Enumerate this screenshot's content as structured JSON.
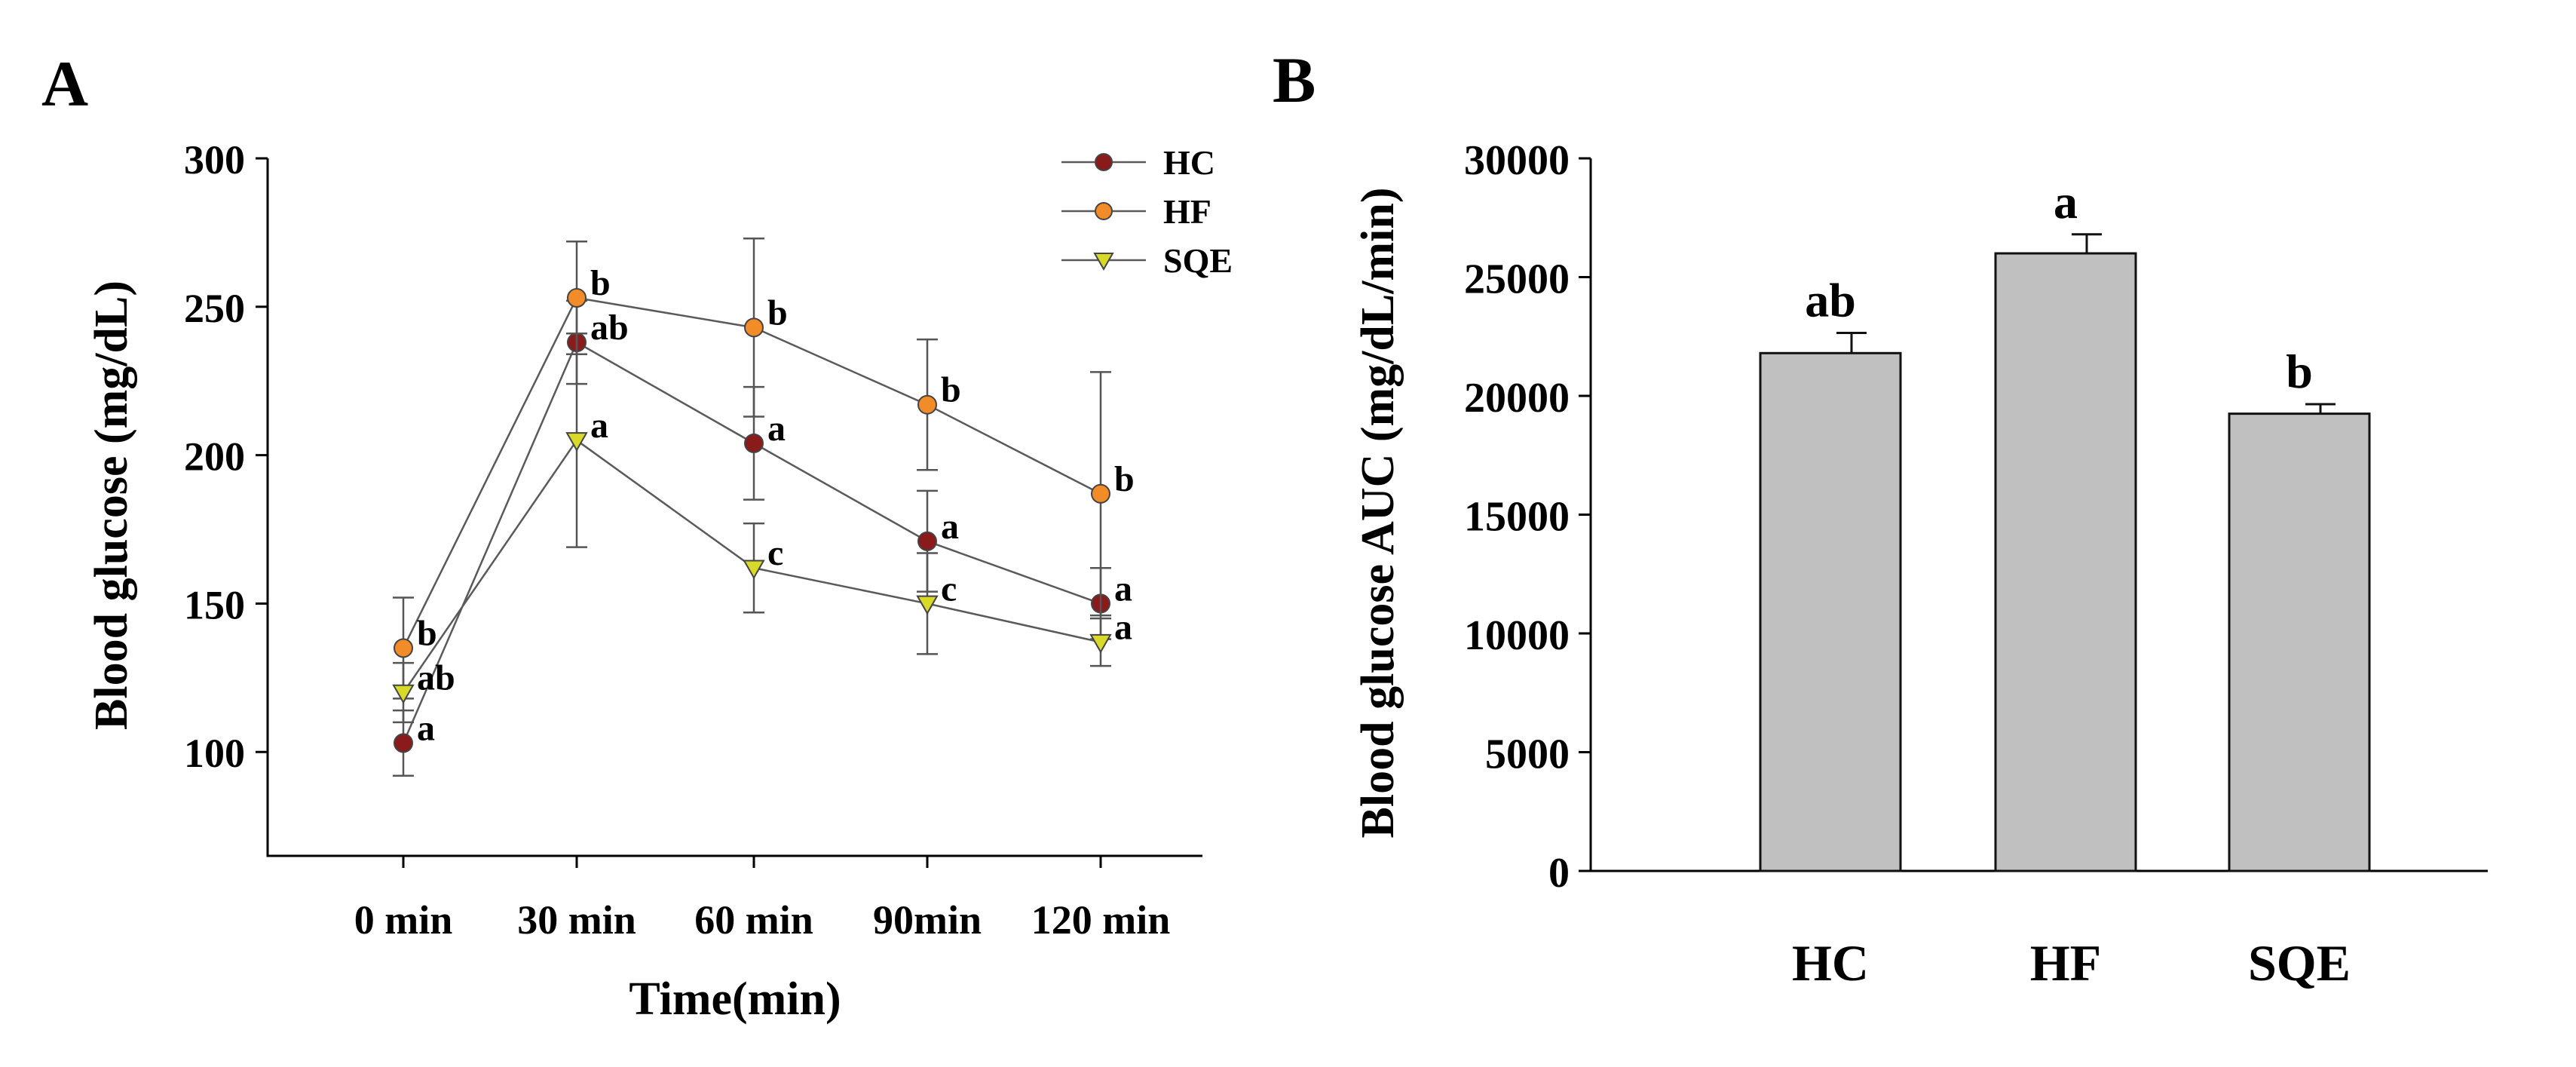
{
  "colors": {
    "HC": "#8b1a1a",
    "HF": "#f28c28",
    "SQE": "#d9d92a",
    "bar_fill": "#c0c0c0"
  },
  "chart_data": [
    {
      "panel": "A",
      "type": "line",
      "title": "",
      "xlabel": "Time(min)",
      "ylabel": "Blood glucose (mg/dL)",
      "categories": [
        "0 min",
        "30 min",
        "60 min",
        "90min",
        "120 min"
      ],
      "ylim": [
        65,
        300
      ],
      "yticks": [
        100,
        150,
        200,
        250,
        300
      ],
      "grid": false,
      "legend_position": "top-right",
      "series": [
        {
          "name": "HC",
          "marker": "circle",
          "values": [
            103,
            238,
            204,
            171,
            150
          ],
          "errors": [
            11,
            14,
            19,
            17,
            12
          ],
          "labels": [
            "a",
            "ab",
            "a",
            "a",
            "a"
          ]
        },
        {
          "name": "HF",
          "marker": "circle",
          "values": [
            135,
            253,
            243,
            217,
            187
          ],
          "errors": [
            17,
            19,
            30,
            22,
            41
          ],
          "labels": [
            "b",
            "b",
            "b",
            "b",
            "b"
          ]
        },
        {
          "name": "SQE",
          "marker": "triangle-down",
          "values": [
            120,
            205,
            162,
            150,
            137
          ],
          "errors": [
            10,
            36,
            15,
            17,
            8
          ],
          "labels": [
            "ab",
            "a",
            "c",
            "c",
            "a"
          ]
        }
      ]
    },
    {
      "panel": "B",
      "type": "bar",
      "title": "",
      "xlabel": "",
      "ylabel": "Blood glucose AUC (mg/dL/min)",
      "categories": [
        "HC",
        "HF",
        "SQE"
      ],
      "values": [
        21800,
        26000,
        19250
      ],
      "errors": [
        850,
        800,
        400
      ],
      "labels": [
        "ab",
        "a",
        "b"
      ],
      "ylim": [
        0,
        30000
      ],
      "yticks": [
        0,
        5000,
        10000,
        15000,
        20000,
        25000,
        30000
      ],
      "grid": false
    }
  ]
}
